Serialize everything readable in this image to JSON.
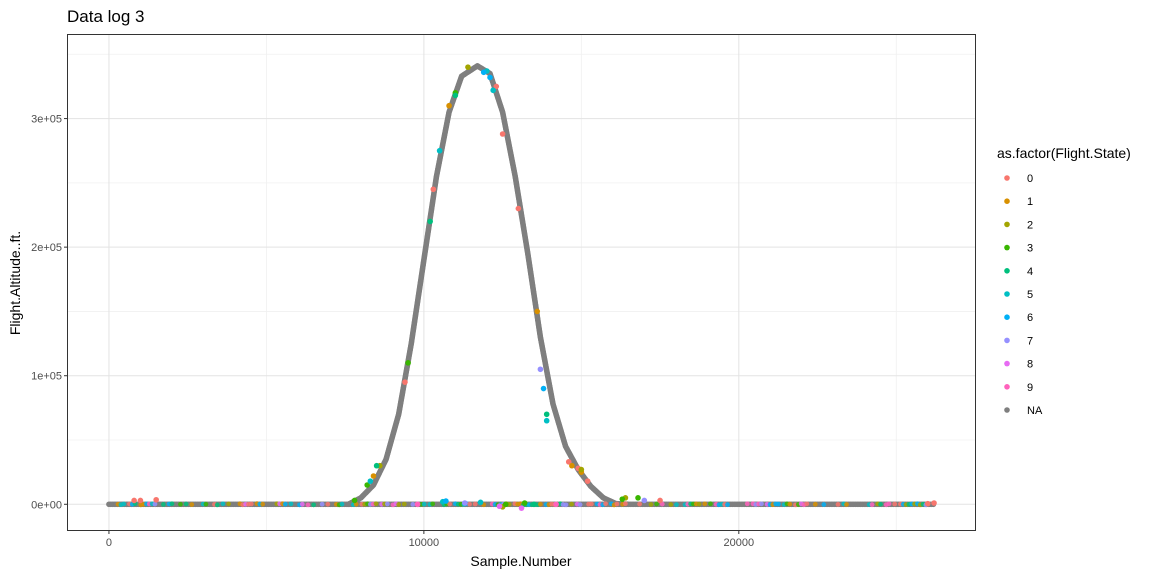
{
  "chart_data": {
    "type": "scatter",
    "title": "Data log 3",
    "xlabel": "Sample.Number",
    "ylabel": "Flight.Altitude..ft.",
    "xlim": [
      -1300,
      27500
    ],
    "ylim": [
      -20000,
      365000
    ],
    "x_ticks": [
      0,
      10000,
      20000
    ],
    "x_tick_labels": [
      "0",
      "10000",
      "20000"
    ],
    "y_ticks": [
      0,
      100000,
      200000,
      300000
    ],
    "y_tick_labels": [
      "0e+00",
      "1e+05",
      "2e+05",
      "3e+05"
    ],
    "grid": true,
    "legend": {
      "title": "as.factor(Flight.State)",
      "position": "right",
      "entries": [
        "0",
        "1",
        "2",
        "3",
        "4",
        "5",
        "6",
        "7",
        "8",
        "9",
        "NA"
      ]
    },
    "colors": {
      "0": "#F8766D",
      "1": "#D89000",
      "2": "#A3A500",
      "3": "#39B600",
      "4": "#00BF7D",
      "5": "#00BFC4",
      "6": "#00B0F6",
      "7": "#9590FF",
      "8": "#E76BF3",
      "9": "#FF62BC",
      "NA": "#7F7F7F"
    },
    "series": [
      {
        "name": "NA",
        "curve": {
          "baseline_x_range": [
            0,
            26200
          ],
          "peak_x": 11700,
          "peak_y": 341000,
          "points": [
            [
              7600,
              0
            ],
            [
              8000,
              5000
            ],
            [
              8400,
              15000
            ],
            [
              8800,
              35000
            ],
            [
              9200,
              70000
            ],
            [
              9600,
              125000
            ],
            [
              10000,
              190000
            ],
            [
              10400,
              255000
            ],
            [
              10800,
              305000
            ],
            [
              11200,
              333000
            ],
            [
              11700,
              341000
            ],
            [
              12100,
              335000
            ],
            [
              12500,
              305000
            ],
            [
              12900,
              255000
            ],
            [
              13300,
              195000
            ],
            [
              13700,
              130000
            ],
            [
              14100,
              78000
            ],
            [
              14500,
              45000
            ],
            [
              14900,
              27000
            ],
            [
              15300,
              14000
            ],
            [
              15700,
              5000
            ],
            [
              16100,
              500
            ],
            [
              16500,
              0
            ]
          ]
        }
      },
      {
        "name": "0",
        "points": [
          [
            800,
            3000
          ],
          [
            1000,
            3000
          ],
          [
            1500,
            3500
          ],
          [
            9400,
            95000
          ],
          [
            10300,
            245000
          ],
          [
            12300,
            325000
          ],
          [
            12500,
            288000
          ],
          [
            13000,
            230000
          ],
          [
            14600,
            33000
          ],
          [
            14900,
            28000
          ],
          [
            15200,
            18000
          ],
          [
            17500,
            3000
          ],
          [
            26200,
            1000
          ],
          [
            26000,
            500
          ]
        ]
      },
      {
        "name": "1",
        "points": [
          [
            8400,
            22000
          ],
          [
            10800,
            310000
          ],
          [
            13600,
            150000
          ],
          [
            14700,
            30000
          ],
          [
            15000,
            25000
          ]
        ]
      },
      {
        "name": "2",
        "points": [
          [
            8600,
            30000
          ],
          [
            11400,
            340000
          ],
          [
            15000,
            27000
          ],
          [
            16400,
            5000
          ],
          [
            12500,
            -2000
          ]
        ]
      },
      {
        "name": "3",
        "points": [
          [
            7800,
            3000
          ],
          [
            8200,
            15000
          ],
          [
            9500,
            110000
          ],
          [
            11000,
            320000
          ],
          [
            12600,
            0
          ],
          [
            13200,
            1000
          ],
          [
            16300,
            4000
          ],
          [
            16800,
            5000
          ]
        ]
      },
      {
        "name": "4",
        "points": [
          [
            8500,
            30000
          ],
          [
            10200,
            220000
          ],
          [
            11000,
            318000
          ],
          [
            13900,
            70000
          ],
          [
            13500,
            0
          ]
        ]
      },
      {
        "name": "5",
        "points": [
          [
            8300,
            18000
          ],
          [
            10500,
            275000
          ],
          [
            12000,
            337000
          ],
          [
            12200,
            322000
          ],
          [
            13900,
            65000
          ],
          [
            10600,
            2000
          ],
          [
            11800,
            1500
          ]
        ]
      },
      {
        "name": "6",
        "points": [
          [
            11900,
            336000
          ],
          [
            12100,
            332000
          ],
          [
            13800,
            90000
          ],
          [
            10700,
            2500
          ]
        ]
      },
      {
        "name": "7",
        "points": [
          [
            13700,
            105000
          ],
          [
            17000,
            3000
          ],
          [
            11300,
            1000
          ]
        ]
      },
      {
        "name": "8",
        "points": [
          [
            13100,
            -3000
          ],
          [
            12400,
            -1500
          ]
        ]
      },
      {
        "name": "9",
        "points": [
          [
            9800,
            0
          ],
          [
            14200,
            0
          ]
        ]
      }
    ]
  }
}
